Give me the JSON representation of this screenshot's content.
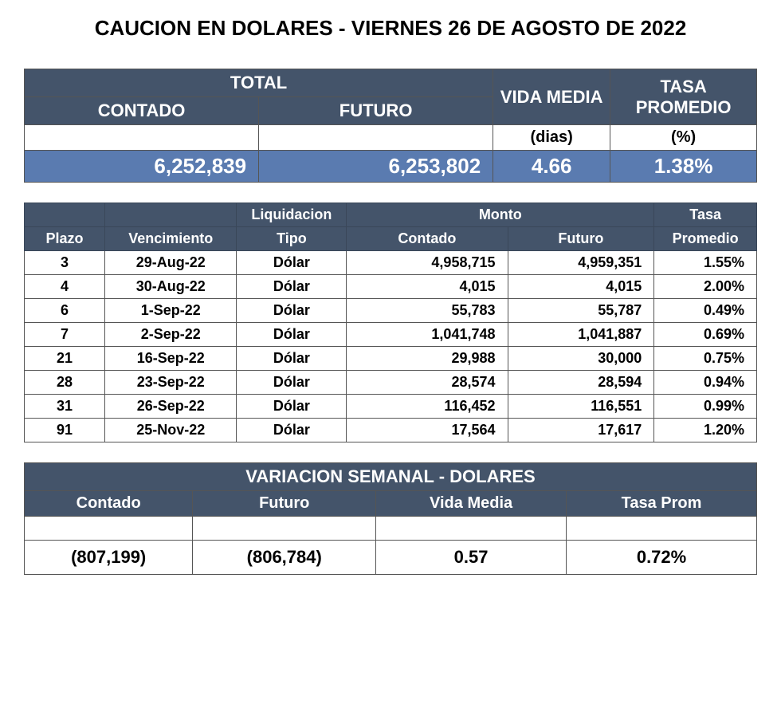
{
  "title": "CAUCION EN DOLARES - VIERNES  26 DE AGOSTO DE 2022",
  "colors": {
    "header_bg": "#44546a",
    "header_text": "#ffffff",
    "highlight_row_bg": "#5a7bb0",
    "highlight_row_text": "#ffffff",
    "border": "#555555",
    "background": "#ffffff",
    "body_text": "#000000"
  },
  "typography": {
    "title_fontsize": 26,
    "header_fontsize": 22,
    "body_fontsize": 20,
    "detail_fontsize": 18,
    "font_family": "Arial"
  },
  "summary": {
    "headers": {
      "total": "TOTAL",
      "contado": "CONTADO",
      "futuro": "FUTURO",
      "vida_media": "VIDA MEDIA",
      "tasa_promedio": "TASA PROMEDIO"
    },
    "units": {
      "dias": "(dias)",
      "pct": "(%)"
    },
    "values": {
      "contado": "6,252,839",
      "futuro": "6,253,802",
      "vida_media": "4.66",
      "tasa_promedio": "1.38%"
    }
  },
  "detail": {
    "type": "table",
    "column_alignment": [
      "center",
      "center",
      "center",
      "right",
      "right",
      "right"
    ],
    "headers": {
      "plazo": "Plazo",
      "vencimiento": "Vencimiento",
      "liquidacion": "Liquidacion",
      "tipo": "Tipo",
      "monto": "Monto",
      "contado": "Contado",
      "futuro": "Futuro",
      "tasa": "Tasa",
      "promedio": "Promedio"
    },
    "rows": [
      {
        "plazo": "3",
        "venc": "29-Aug-22",
        "tipo": "Dólar",
        "contado": "4,958,715",
        "futuro": "4,959,351",
        "tasa": "1.55%"
      },
      {
        "plazo": "4",
        "venc": "30-Aug-22",
        "tipo": "Dólar",
        "contado": "4,015",
        "futuro": "4,015",
        "tasa": "2.00%"
      },
      {
        "plazo": "6",
        "venc": "1-Sep-22",
        "tipo": "Dólar",
        "contado": "55,783",
        "futuro": "55,787",
        "tasa": "0.49%"
      },
      {
        "plazo": "7",
        "venc": "2-Sep-22",
        "tipo": "Dólar",
        "contado": "1,041,748",
        "futuro": "1,041,887",
        "tasa": "0.69%"
      },
      {
        "plazo": "21",
        "venc": "16-Sep-22",
        "tipo": "Dólar",
        "contado": "29,988",
        "futuro": "30,000",
        "tasa": "0.75%"
      },
      {
        "plazo": "28",
        "venc": "23-Sep-22",
        "tipo": "Dólar",
        "contado": "28,574",
        "futuro": "28,594",
        "tasa": "0.94%"
      },
      {
        "plazo": "31",
        "venc": "26-Sep-22",
        "tipo": "Dólar",
        "contado": "116,452",
        "futuro": "116,551",
        "tasa": "0.99%"
      },
      {
        "plazo": "91",
        "venc": "25-Nov-22",
        "tipo": "Dólar",
        "contado": "17,564",
        "futuro": "17,617",
        "tasa": "1.20%"
      }
    ]
  },
  "variation": {
    "title": "VARIACION SEMANAL - DOLARES",
    "headers": {
      "contado": "Contado",
      "futuro": "Futuro",
      "vida_media": "Vida Media",
      "tasa_prom": "Tasa Prom"
    },
    "values": {
      "contado": "(807,199)",
      "futuro": "(806,784)",
      "vida_media": "0.57",
      "tasa_prom": "0.72%"
    }
  }
}
